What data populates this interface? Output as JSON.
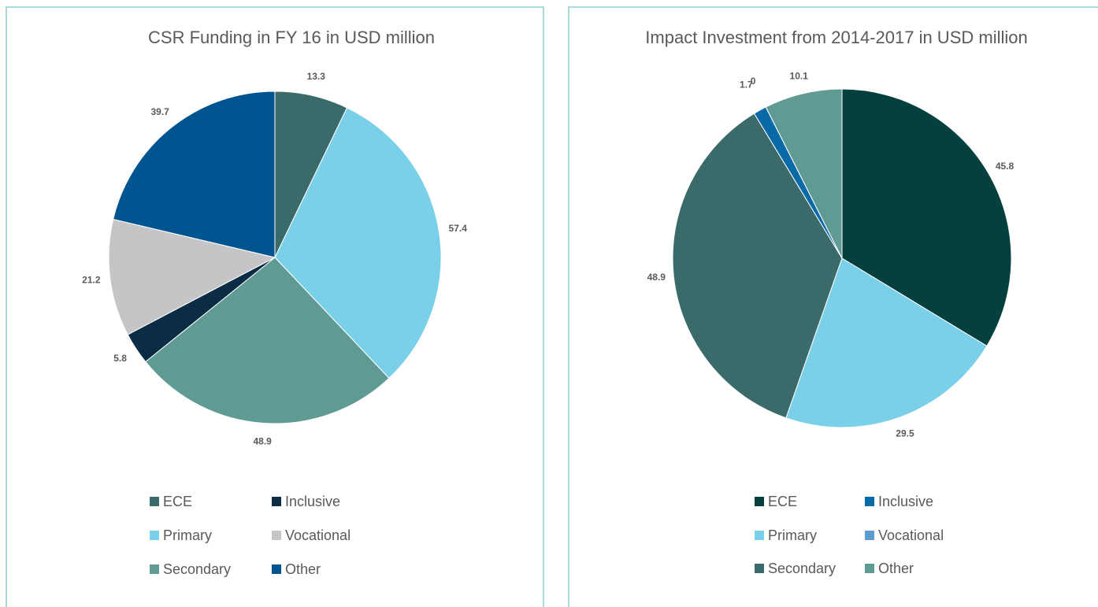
{
  "chart_data": [
    {
      "type": "pie",
      "title": "CSR Funding in FY 16 in USD million",
      "categories": [
        "ECE",
        "Primary",
        "Secondary",
        "Inclusive",
        "Vocational",
        "Other"
      ],
      "values": [
        13.3,
        57.4,
        48.9,
        5.8,
        21.2,
        39.7
      ],
      "colors": [
        "#3a6b6a",
        "#7ad0e8",
        "#5f9a93",
        "#0b2c45",
        "#c5c5c8",
        "#005490"
      ],
      "legend": "bottom"
    },
    {
      "type": "pie",
      "title": "Impact Investment from 2014-2017 in USD million",
      "categories": [
        "ECE",
        "Primary",
        "Secondary",
        "Inclusive",
        "Vocational",
        "Other"
      ],
      "values": [
        45.8,
        29.5,
        48.9,
        1.7,
        0,
        10.1
      ],
      "colors": [
        "#05403f",
        "#7ad0e8",
        "#3a6b6a",
        "#0a6aa8",
        "#5b9bd0",
        "#5f9a93"
      ],
      "legend": "bottom"
    }
  ]
}
